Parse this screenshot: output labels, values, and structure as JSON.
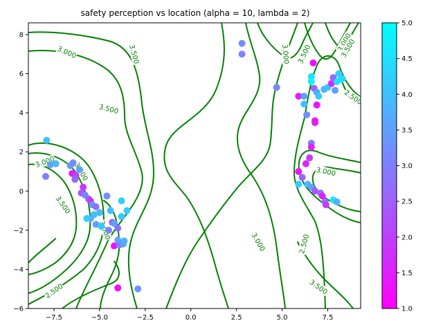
{
  "chart_data": {
    "type": "scatter",
    "title": "safety perception vs location (alpha = 10, lambda = 2)",
    "xlabel": "",
    "ylabel": "",
    "xlim": [
      -8.9,
      9.3
    ],
    "ylim": [
      -6.0,
      8.6
    ],
    "xticks": [
      -7.5,
      -5.0,
      -2.5,
      0.0,
      2.5,
      5.0,
      7.5
    ],
    "xtick_labels": [
      "−7.5",
      "−5.0",
      "−2.5",
      "0.0",
      "2.5",
      "5.0",
      "7.5"
    ],
    "yticks": [
      -6,
      -4,
      -2,
      0,
      2,
      4,
      6,
      8
    ],
    "ytick_labels": [
      "−6",
      "−4",
      "−2",
      "0",
      "2",
      "4",
      "6",
      "8"
    ],
    "colormap": "cool",
    "color_range": [
      1.0,
      5.0
    ],
    "colorbar_ticks": [
      1.0,
      1.5,
      2.0,
      2.5,
      3.0,
      3.5,
      4.0,
      4.5,
      5.0
    ],
    "colorbar_tick_labels": [
      "1.0",
      "1.5",
      "2.0",
      "2.5",
      "3.0",
      "3.5",
      "4.0",
      "4.5",
      "5.0"
    ],
    "contour_color": "#008000",
    "contour_labels": [
      {
        "text": "3.000",
        "x": -6.8,
        "y": 7.1,
        "rot": 24
      },
      {
        "text": "3.500",
        "x": -3.1,
        "y": 7.0,
        "rot": 75
      },
      {
        "text": "3.500",
        "x": -4.5,
        "y": 4.2,
        "rot": 15
      },
      {
        "text": "3.000",
        "x": -8.0,
        "y": 1.5,
        "rot": -20
      },
      {
        "text": "3.500",
        "x": -6.0,
        "y": 1.0,
        "rot": 60
      },
      {
        "text": "3.500",
        "x": -7.0,
        "y": -0.7,
        "rot": 55
      },
      {
        "text": "3.000",
        "x": -4.7,
        "y": -2.0,
        "rot": 70
      },
      {
        "text": "2.500",
        "x": -7.5,
        "y": -5.1,
        "rot": -35
      },
      {
        "text": "3.000",
        "x": 3.7,
        "y": -2.6,
        "rot": 60
      },
      {
        "text": "3.000",
        "x": 5.2,
        "y": 7.0,
        "rot": 85
      },
      {
        "text": "3.500",
        "x": 6.2,
        "y": 7.0,
        "rot": -65
      },
      {
        "text": "3.000",
        "x": 8.4,
        "y": 7.6,
        "rot": -60
      },
      {
        "text": "3.500",
        "x": 8.6,
        "y": 7.3,
        "rot": -60
      },
      {
        "text": "2.500",
        "x": 8.9,
        "y": 4.8,
        "rot": 35
      },
      {
        "text": "3.000",
        "x": 7.4,
        "y": 1.0,
        "rot": 12
      },
      {
        "text": "2.500",
        "x": 6.2,
        "y": -2.7,
        "rot": -75
      },
      {
        "text": "3.500",
        "x": 7.0,
        "y": -4.9,
        "rot": 35
      }
    ],
    "points": [
      {
        "x": 2.8,
        "y": 7.55,
        "v": 3.2
      },
      {
        "x": 2.8,
        "y": 7.0,
        "v": 3.0
      },
      {
        "x": 4.7,
        "y": 5.3,
        "v": 3.1
      },
      {
        "x": 6.7,
        "y": 6.55,
        "v": 1.2
      },
      {
        "x": 5.9,
        "y": 4.85,
        "v": 1.4
      },
      {
        "x": 6.2,
        "y": 4.85,
        "v": 3.5
      },
      {
        "x": 6.2,
        "y": 4.45,
        "v": 4.0
      },
      {
        "x": 6.35,
        "y": 3.9,
        "v": 3.2
      },
      {
        "x": 6.6,
        "y": 5.85,
        "v": 4.6
      },
      {
        "x": 6.6,
        "y": 5.6,
        "v": 4.8
      },
      {
        "x": 6.75,
        "y": 5.25,
        "v": 2.5
      },
      {
        "x": 6.9,
        "y": 5.05,
        "v": 3.6
      },
      {
        "x": 7.0,
        "y": 4.85,
        "v": 4.2
      },
      {
        "x": 6.9,
        "y": 4.4,
        "v": 1.3
      },
      {
        "x": 6.8,
        "y": 3.6,
        "v": 1.5
      },
      {
        "x": 6.8,
        "y": 3.5,
        "v": 1.4
      },
      {
        "x": 7.3,
        "y": 5.2,
        "v": 3.8
      },
      {
        "x": 7.5,
        "y": 5.3,
        "v": 4.1
      },
      {
        "x": 7.7,
        "y": 5.5,
        "v": 1.6
      },
      {
        "x": 7.8,
        "y": 5.8,
        "v": 2.6
      },
      {
        "x": 7.9,
        "y": 5.15,
        "v": 3.5
      },
      {
        "x": 8.0,
        "y": 5.6,
        "v": 4.5
      },
      {
        "x": 8.1,
        "y": 6.0,
        "v": 4.2
      },
      {
        "x": 8.2,
        "y": 5.7,
        "v": 4.7
      },
      {
        "x": 8.3,
        "y": 5.75,
        "v": 4.4
      },
      {
        "x": 6.6,
        "y": 2.45,
        "v": 3.0
      },
      {
        "x": 6.6,
        "y": 2.25,
        "v": 1.5
      },
      {
        "x": 6.5,
        "y": 1.7,
        "v": 2.0
      },
      {
        "x": 6.3,
        "y": 1.4,
        "v": 1.6
      },
      {
        "x": 5.9,
        "y": 1.0,
        "v": 1.3
      },
      {
        "x": 6.1,
        "y": 0.7,
        "v": 2.6
      },
      {
        "x": 5.9,
        "y": 0.35,
        "v": 4.2
      },
      {
        "x": 6.4,
        "y": 0.35,
        "v": 3.9
      },
      {
        "x": 6.6,
        "y": 0.2,
        "v": 3.5
      },
      {
        "x": 6.8,
        "y": 0.0,
        "v": 2.3
      },
      {
        "x": 7.1,
        "y": -0.1,
        "v": 2.7
      },
      {
        "x": 7.2,
        "y": -0.25,
        "v": 1.5
      },
      {
        "x": 7.35,
        "y": -0.55,
        "v": 2.8
      },
      {
        "x": 7.4,
        "y": -0.7,
        "v": 1.9
      },
      {
        "x": 7.8,
        "y": -0.45,
        "v": 4.6
      },
      {
        "x": 8.0,
        "y": -0.55,
        "v": 3.8
      },
      {
        "x": -7.9,
        "y": 2.6,
        "v": 4.0
      },
      {
        "x": -7.7,
        "y": 1.35,
        "v": 3.5
      },
      {
        "x": -7.4,
        "y": 1.4,
        "v": 3.9
      },
      {
        "x": -7.95,
        "y": 0.75,
        "v": 3.0
      },
      {
        "x": -6.6,
        "y": 1.3,
        "v": 3.4
      },
      {
        "x": -6.45,
        "y": 1.45,
        "v": 3.2
      },
      {
        "x": -6.5,
        "y": 0.9,
        "v": 1.4
      },
      {
        "x": -6.3,
        "y": 0.8,
        "v": 2.0
      },
      {
        "x": -6.35,
        "y": 0.6,
        "v": 2.6
      },
      {
        "x": -6.1,
        "y": 1.1,
        "v": 3.5
      },
      {
        "x": -5.9,
        "y": 0.2,
        "v": 1.8
      },
      {
        "x": -6.0,
        "y": -0.1,
        "v": 2.4
      },
      {
        "x": -5.8,
        "y": -0.2,
        "v": 3.1
      },
      {
        "x": -5.6,
        "y": -0.4,
        "v": 2.6
      },
      {
        "x": -5.5,
        "y": -0.5,
        "v": 1.8
      },
      {
        "x": -5.4,
        "y": -0.7,
        "v": 3.3
      },
      {
        "x": -5.2,
        "y": -0.8,
        "v": 2.8
      },
      {
        "x": -5.0,
        "y": -1.1,
        "v": 3.9
      },
      {
        "x": -5.3,
        "y": -1.2,
        "v": 4.0
      },
      {
        "x": -5.5,
        "y": -1.4,
        "v": 3.6
      },
      {
        "x": -5.7,
        "y": -1.4,
        "v": 4.3
      },
      {
        "x": -5.2,
        "y": -1.7,
        "v": 3.5
      },
      {
        "x": -4.9,
        "y": -1.8,
        "v": 4.2
      },
      {
        "x": -4.6,
        "y": -0.25,
        "v": 3.2
      },
      {
        "x": -4.4,
        "y": -1.0,
        "v": 4.0
      },
      {
        "x": -4.3,
        "y": -1.6,
        "v": 2.2
      },
      {
        "x": -4.5,
        "y": -2.0,
        "v": 3.0
      },
      {
        "x": -4.2,
        "y": -1.65,
        "v": 3.5
      },
      {
        "x": -3.8,
        "y": -0.5,
        "v": 4.3
      },
      {
        "x": -3.5,
        "y": -1.0,
        "v": 4.2
      },
      {
        "x": -3.8,
        "y": -1.3,
        "v": 4.1
      },
      {
        "x": -4.0,
        "y": -1.9,
        "v": 2.8
      },
      {
        "x": -4.0,
        "y": -2.5,
        "v": 3.6
      },
      {
        "x": -4.2,
        "y": -2.8,
        "v": 1.3
      },
      {
        "x": -3.9,
        "y": -2.75,
        "v": 3.0
      },
      {
        "x": -3.7,
        "y": -2.7,
        "v": 3.5
      },
      {
        "x": -3.65,
        "y": -2.55,
        "v": 3.7
      },
      {
        "x": -4.0,
        "y": -4.95,
        "v": 1.2
      },
      {
        "x": -2.9,
        "y": -5.0,
        "v": 3.3
      }
    ]
  }
}
